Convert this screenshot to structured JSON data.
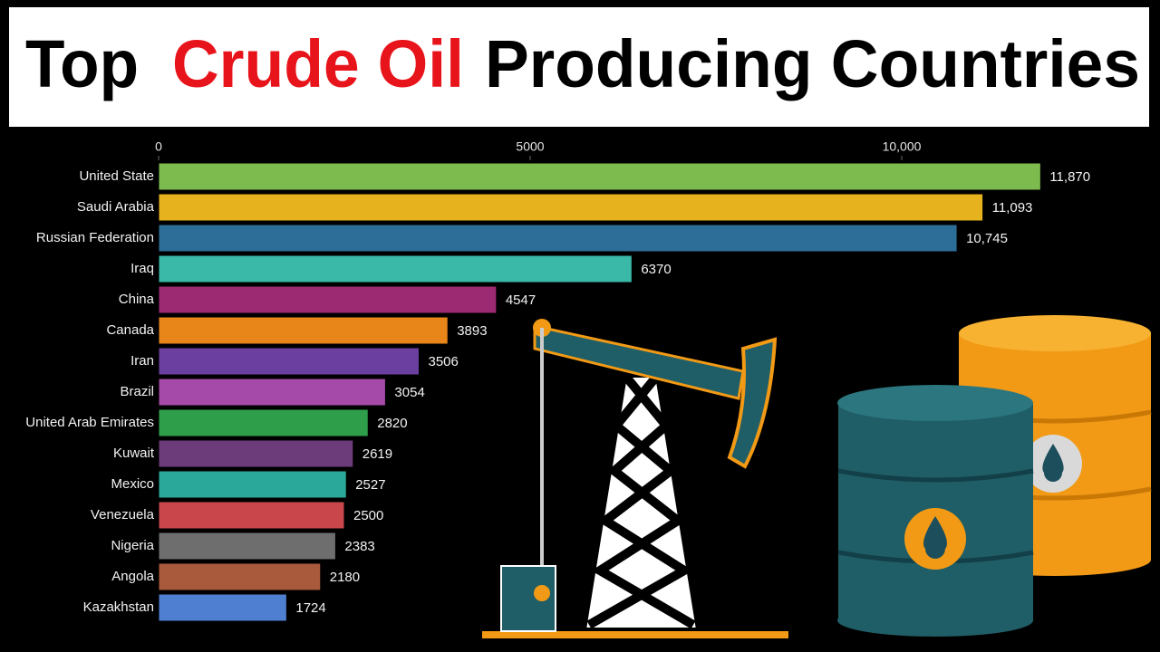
{
  "chart_data": {
    "type": "bar",
    "orientation": "horizontal",
    "title_parts": [
      "Top",
      "Crude Oil",
      "Producing Countries"
    ],
    "title_colors": [
      "#000000",
      "#e8141b",
      "#000000"
    ],
    "categories": [
      "United State",
      "Saudi Arabia",
      "Russian Federation",
      "Iraq",
      "China",
      "Canada",
      "Iran",
      "Brazil",
      "United Arab Emirates",
      "Kuwait",
      "Mexico",
      "Venezuela",
      "Nigeria",
      "Angola",
      "Kazakhstan"
    ],
    "values": [
      11870,
      11093,
      10745,
      6370,
      4547,
      3893,
      3506,
      3054,
      2820,
      2619,
      2527,
      2500,
      2383,
      2180,
      1724
    ],
    "value_labels": [
      "11,870",
      "11,093",
      "10,745",
      "6370",
      "4547",
      "3893",
      "3506",
      "3054",
      "2820",
      "2619",
      "2527",
      "2500",
      "2383",
      "2180",
      "1724"
    ],
    "colors": [
      "#7dbb4f",
      "#e6b21d",
      "#2c6e97",
      "#3ab8a8",
      "#9c2a72",
      "#e8861a",
      "#6b3fa0",
      "#a54aa8",
      "#2f9e4a",
      "#6c3b7a",
      "#2aa89a",
      "#c9464b",
      "#6e6e6e",
      "#a95a3c",
      "#4f7fd1"
    ],
    "xlim": [
      0,
      12500
    ],
    "xticks": [
      0,
      5000,
      {
        "value": 10000,
        "label": "10,000"
      }
    ],
    "grid": false
  }
}
